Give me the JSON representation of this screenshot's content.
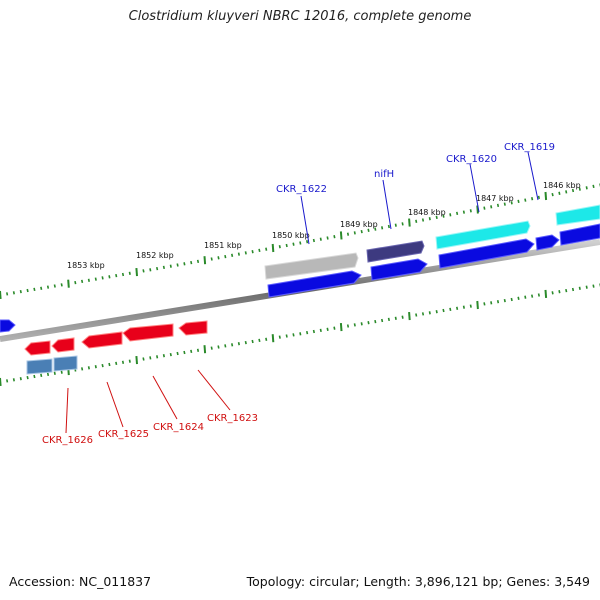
{
  "title": "Clostridium kluyveri NBRC 12016, complete genome",
  "footer": {
    "accession": "Accession: NC_011837",
    "summary": "Topology: circular; Length: 3,896,121 bp; Genes: 3,549"
  },
  "colors": {
    "backbone": "#888888",
    "tick": "#2a8a2a",
    "forward_cds": "#0a0ae0",
    "reverse_cds": "#e8001a",
    "label_forward": "#1a1acc",
    "label_reverse": "#d01010",
    "teal": "#1de8e8",
    "grey_gene": "#b8b8b8",
    "purple_gene": "#3d3a80",
    "steel_gene": "#4a7fb5"
  },
  "kbp_markers": [
    "1853 kbp",
    "1852 kbp",
    "1851 kbp",
    "1850 kbp",
    "1849 kbp",
    "1848 kbp",
    "1847 kbp",
    "1846 kbp"
  ],
  "gene_labels": {
    "forward": [
      "CKR_1622",
      "nifH",
      "CKR_1620",
      "CKR_1619"
    ],
    "reverse": [
      "CKR_1626",
      "CKR_1625",
      "CKR_1624",
      "CKR_1623"
    ]
  }
}
